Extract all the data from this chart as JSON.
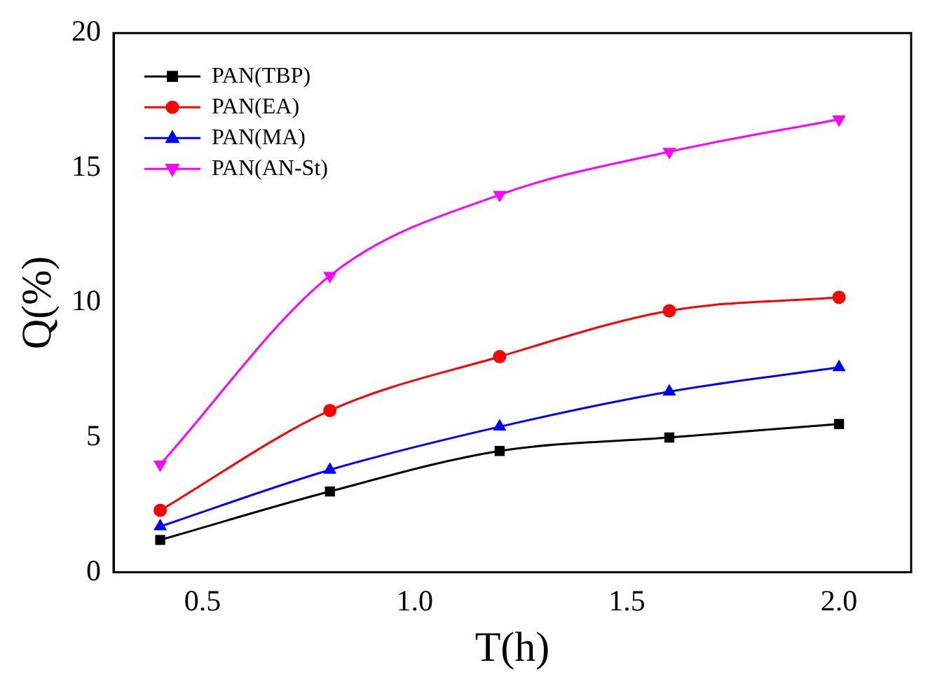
{
  "chart_data": {
    "type": "line",
    "xlabel": "T(h)",
    "ylabel": "Q(%)",
    "x": [
      0.4,
      0.8,
      1.2,
      1.6,
      2.0
    ],
    "xlim": [
      0.29,
      2.17
    ],
    "xticks": [
      {
        "value": 0.5,
        "label": "0.5"
      },
      {
        "value": 1.0,
        "label": "1.0"
      },
      {
        "value": 1.5,
        "label": "1.5"
      },
      {
        "value": 2.0,
        "label": "2.0"
      }
    ],
    "ylim": [
      0,
      20
    ],
    "yticks": [
      0,
      5,
      10,
      15,
      20
    ],
    "grid": false,
    "legend": "top left",
    "line_style": "solid",
    "series": [
      {
        "name": "PAN(TBP)",
        "color": "#000000",
        "marker": "square",
        "values": [
          1.2,
          3.0,
          4.5,
          5.0,
          5.5
        ]
      },
      {
        "name": "PAN(EA)",
        "color": "#ff0000",
        "marker": "circle",
        "values": [
          2.3,
          6.0,
          8.0,
          9.7,
          10.2
        ]
      },
      {
        "name": "PAN(MA)",
        "color": "#0000ff",
        "marker": "triangle",
        "values": [
          1.7,
          3.8,
          5.4,
          6.7,
          7.6
        ]
      },
      {
        "name": "PAN(AN-St)",
        "color": "#ff00ff",
        "marker": "triangle-down",
        "values": [
          4.0,
          11.0,
          14.0,
          15.6,
          16.8
        ]
      }
    ]
  }
}
